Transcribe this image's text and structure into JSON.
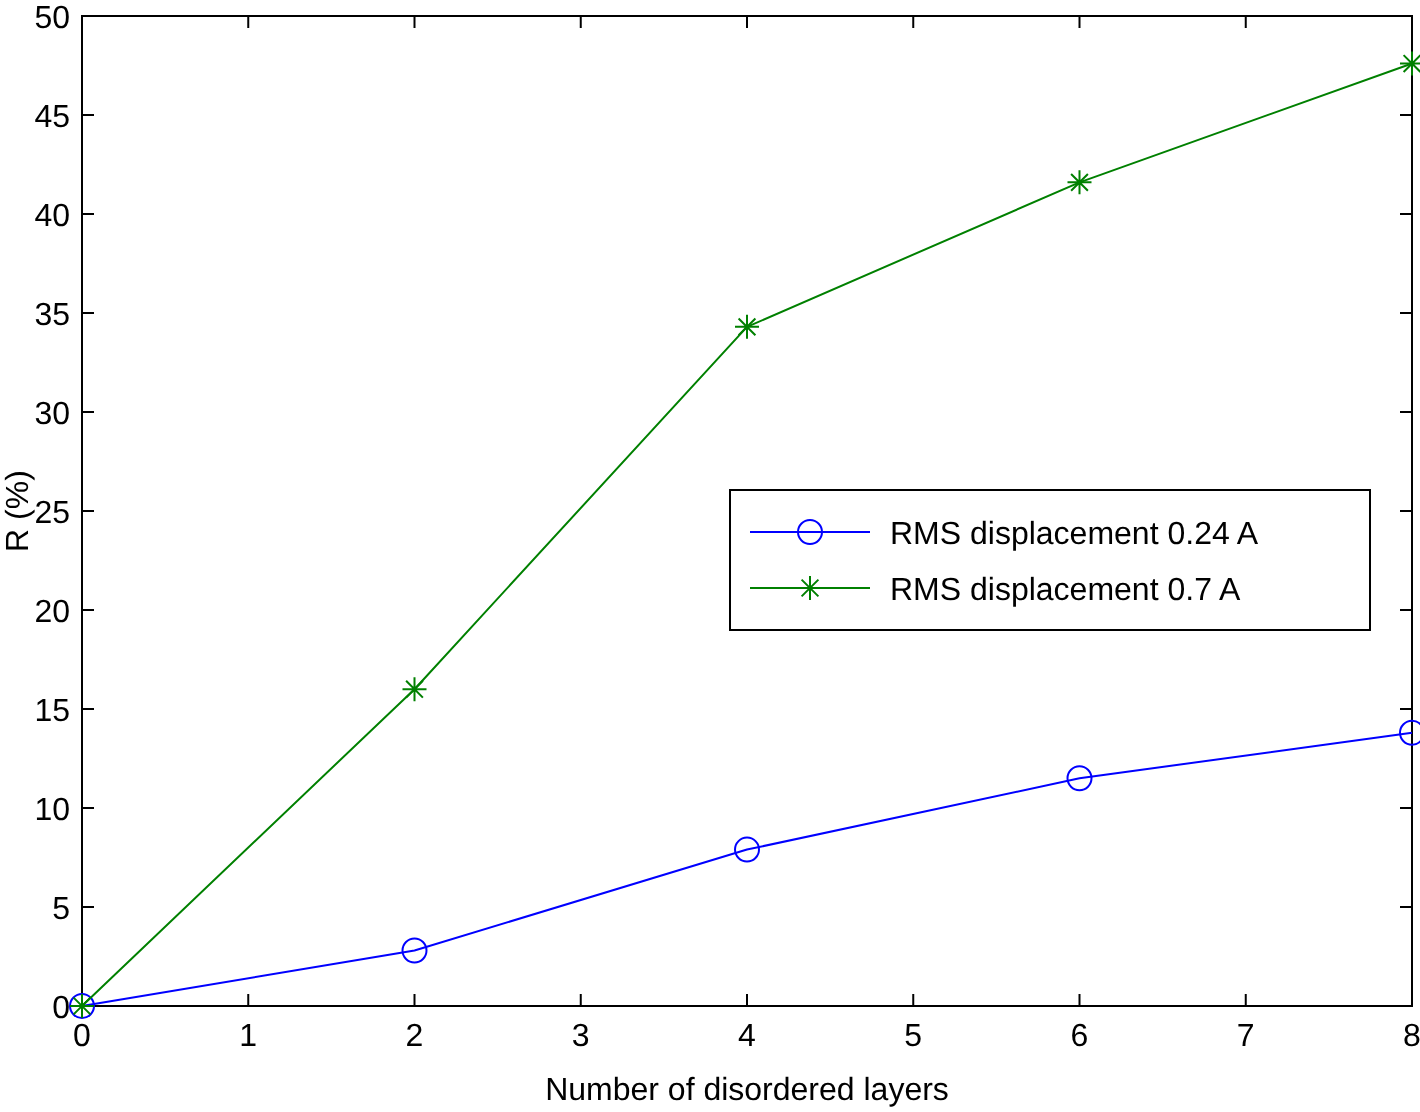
{
  "chart_data": {
    "type": "line",
    "xlabel": "Number of disordered layers",
    "ylabel": "R (%)",
    "x": [
      0,
      2,
      4,
      6,
      8
    ],
    "series": [
      {
        "name": "RMS displacement 0.24 A",
        "color": "#0000ff",
        "marker": "circle",
        "values": [
          0,
          2.8,
          7.9,
          11.5,
          13.8
        ]
      },
      {
        "name": "RMS displacement 0.7 A",
        "color": "#008000",
        "marker": "cross",
        "values": [
          0,
          16.0,
          34.3,
          41.6,
          47.6
        ]
      }
    ],
    "xlim": [
      0,
      8
    ],
    "xticks": [
      0,
      1,
      2,
      3,
      4,
      5,
      6,
      7,
      8
    ],
    "ylim": [
      0,
      50
    ],
    "yticks": [
      0,
      5,
      10,
      15,
      20,
      25,
      30,
      35,
      40,
      45,
      50
    ],
    "grid": false,
    "legend": "right",
    "line_style": "solid"
  }
}
